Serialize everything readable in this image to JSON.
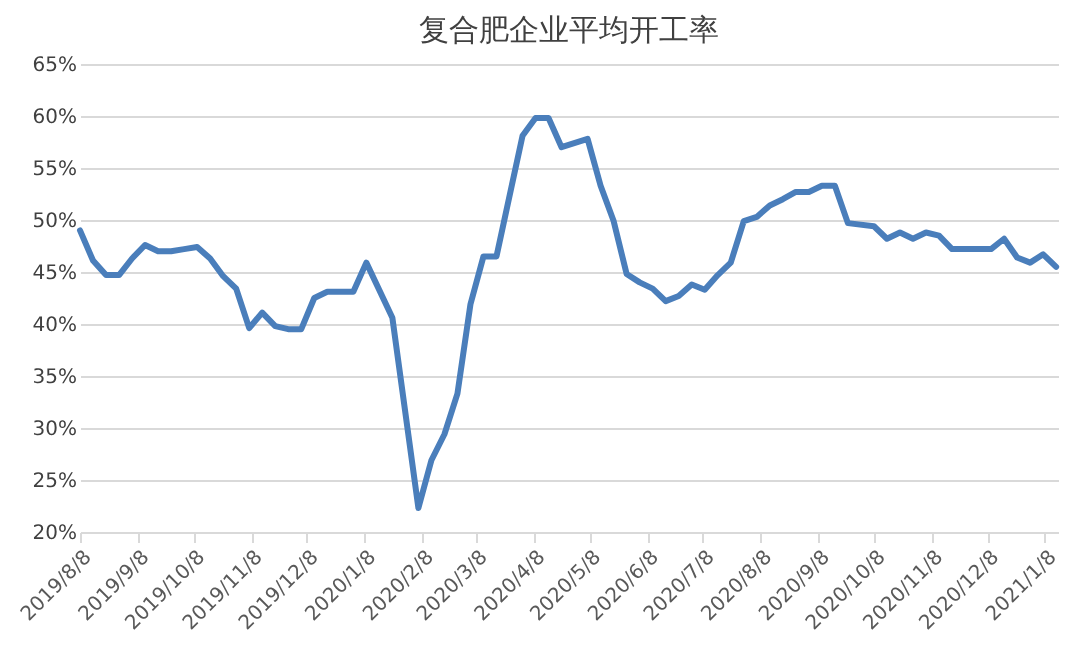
{
  "chart_data": {
    "type": "line",
    "title": "复合肥企业平均开工率",
    "x": [
      "2019-08-08",
      "2019-08-15",
      "2019-08-22",
      "2019-08-29",
      "2019-09-05",
      "2019-09-12",
      "2019-09-19",
      "2019-09-26",
      "2019-10-03",
      "2019-10-10",
      "2019-10-17",
      "2019-10-24",
      "2019-10-31",
      "2019-11-07",
      "2019-11-14",
      "2019-11-21",
      "2019-11-28",
      "2019-12-05",
      "2019-12-12",
      "2019-12-19",
      "2019-12-26",
      "2020-01-02",
      "2020-01-09",
      "2020-01-23",
      "2020-02-06",
      "2020-02-13",
      "2020-02-20",
      "2020-02-27",
      "2020-03-05",
      "2020-03-12",
      "2020-03-19",
      "2020-04-02",
      "2020-04-09",
      "2020-04-16",
      "2020-04-23",
      "2020-05-07",
      "2020-05-14",
      "2020-05-21",
      "2020-05-28",
      "2020-06-04",
      "2020-06-11",
      "2020-06-18",
      "2020-06-25",
      "2020-07-02",
      "2020-07-09",
      "2020-07-16",
      "2020-07-23",
      "2020-07-30",
      "2020-08-06",
      "2020-08-13",
      "2020-08-20",
      "2020-08-27",
      "2020-09-03",
      "2020-09-10",
      "2020-09-17",
      "2020-09-24",
      "2020-10-08",
      "2020-10-15",
      "2020-10-22",
      "2020-10-29",
      "2020-11-05",
      "2020-11-12",
      "2020-11-19",
      "2020-12-10",
      "2020-12-17",
      "2020-12-24",
      "2020-12-31",
      "2021-01-07",
      "2021-01-14"
    ],
    "series": [
      {
        "color": "#4a7ebb",
        "values": [
          49.0,
          46.1,
          44.7,
          44.7,
          46.3,
          47.6,
          47.0,
          47.0,
          47.2,
          47.4,
          46.3,
          44.6,
          43.4,
          39.6,
          41.1,
          39.8,
          39.5,
          39.5,
          42.5,
          43.1,
          43.1,
          43.1,
          45.9,
          40.6,
          22.3,
          26.9,
          29.4,
          33.3,
          41.9,
          46.5,
          46.5,
          58.1,
          59.8,
          59.8,
          57.0,
          57.8,
          53.3,
          49.9,
          44.8,
          44.0,
          43.4,
          42.2,
          42.7,
          43.8,
          43.3,
          44.7,
          45.9,
          49.9,
          50.3,
          51.4,
          52.0,
          52.7,
          52.7,
          53.3,
          53.3,
          49.7,
          49.4,
          48.2,
          48.8,
          48.2,
          48.8,
          48.5,
          47.2,
          47.2,
          48.2,
          46.4,
          45.9,
          46.7,
          45.5
        ]
      }
    ],
    "xlim": [
      "2019-08-08",
      "2021-01-15"
    ],
    "xticks": [
      {
        "value": "2019-08-08",
        "label": "2019/8/8"
      },
      {
        "value": "2019-09-08",
        "label": "2019/9/8"
      },
      {
        "value": "2019-10-08",
        "label": "2019/10/8"
      },
      {
        "value": "2019-11-08",
        "label": "2019/11/8"
      },
      {
        "value": "2019-12-08",
        "label": "2019/12/8"
      },
      {
        "value": "2020-01-08",
        "label": "2020/1/8"
      },
      {
        "value": "2020-02-08",
        "label": "2020/2/8"
      },
      {
        "value": "2020-03-08",
        "label": "2020/3/8"
      },
      {
        "value": "2020-04-08",
        "label": "2020/4/8"
      },
      {
        "value": "2020-05-08",
        "label": "2020/5/8"
      },
      {
        "value": "2020-06-08",
        "label": "2020/6/8"
      },
      {
        "value": "2020-07-08",
        "label": "2020/7/8"
      },
      {
        "value": "2020-08-08",
        "label": "2020/8/8"
      },
      {
        "value": "2020-09-08",
        "label": "2020/9/8"
      },
      {
        "value": "2020-10-08",
        "label": "2020/10/8"
      },
      {
        "value": "2020-11-08",
        "label": "2020/11/8"
      },
      {
        "value": "2020-12-08",
        "label": "2020/12/8"
      },
      {
        "value": "2021-01-08",
        "label": "2021/1/8"
      }
    ],
    "ylim": [
      20,
      65
    ],
    "yticks": [
      {
        "value": 20,
        "label": "20%"
      },
      {
        "value": 25,
        "label": "25%"
      },
      {
        "value": 30,
        "label": "30%"
      },
      {
        "value": 35,
        "label": "35%"
      },
      {
        "value": 40,
        "label": "40%"
      },
      {
        "value": 45,
        "label": "45%"
      },
      {
        "value": 50,
        "label": "50%"
      },
      {
        "value": 55,
        "label": "55%"
      },
      {
        "value": 60,
        "label": "60%"
      },
      {
        "value": 65,
        "label": "65%"
      }
    ],
    "grid": "y",
    "marker": "none",
    "line_style": "solid"
  }
}
